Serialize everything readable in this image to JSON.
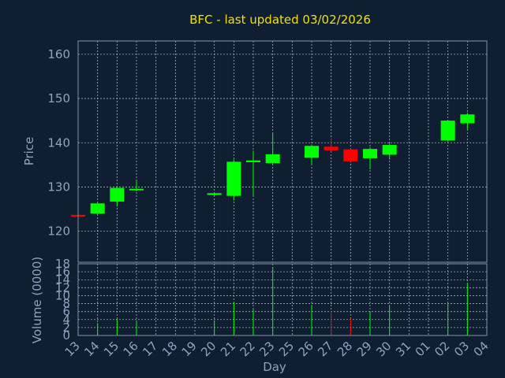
{
  "chart_data": {
    "type": "candlestick",
    "title": "BFC - last updated 03/02/2026",
    "xlabel": "Day",
    "ylabel": "Price",
    "volume_label": "Volume (0000)",
    "ylim": [
      113,
      163
    ],
    "yticks": [
      120,
      130,
      140,
      150,
      160
    ],
    "volume_ylim": [
      0,
      18
    ],
    "volume_yticks": [
      0,
      2,
      4,
      6,
      8,
      10,
      12,
      14,
      16,
      18
    ],
    "grid": true,
    "colors": {
      "up": "#00ff00",
      "down": "#ff0000",
      "title": "#f0e000",
      "text": "#8fa3bf",
      "background": "#0f1f31"
    },
    "x_labels": [
      "13",
      "14",
      "15",
      "16",
      "17",
      "18",
      "19",
      "20",
      "21",
      "22",
      "23",
      "25",
      "26",
      "27",
      "28",
      "29",
      "30",
      "31",
      "01",
      "02",
      "03",
      "04"
    ],
    "candles": [
      {
        "day": "13",
        "open": 123.7,
        "high": 123.7,
        "low": 123.4,
        "close": 123.5,
        "volume": 0.3
      },
      {
        "day": "14",
        "open": 124.0,
        "high": 126.3,
        "low": 123.8,
        "close": 126.3,
        "volume": 3.1
      },
      {
        "day": "15",
        "open": 126.7,
        "high": 130.0,
        "low": 125.6,
        "close": 129.8,
        "volume": 4.2
      },
      {
        "day": "16",
        "open": 129.3,
        "high": 131.4,
        "low": 129.0,
        "close": 129.6,
        "volume": 3.6
      },
      {
        "day": "20",
        "open": 128.2,
        "high": 128.8,
        "low": 127.9,
        "close": 128.6,
        "volume": 3.8
      },
      {
        "day": "21",
        "open": 128.0,
        "high": 136.2,
        "low": 127.0,
        "close": 135.7,
        "volume": 8.4
      },
      {
        "day": "22",
        "open": 135.6,
        "high": 138.2,
        "low": 128.0,
        "close": 136.0,
        "volume": 6.5
      },
      {
        "day": "23",
        "open": 135.4,
        "high": 142.2,
        "low": 135.1,
        "close": 137.4,
        "volume": 17.2
      },
      {
        "day": "26",
        "open": 136.6,
        "high": 139.6,
        "low": 135.0,
        "close": 139.3,
        "volume": 7.6
      },
      {
        "day": "27",
        "open": 139.1,
        "high": 141.0,
        "low": 138.0,
        "close": 138.3,
        "volume": 6.2
      },
      {
        "day": "28",
        "open": 138.5,
        "high": 138.6,
        "low": 135.8,
        "close": 135.8,
        "volume": 4.3
      },
      {
        "day": "29",
        "open": 136.5,
        "high": 139.0,
        "low": 134.0,
        "close": 138.6,
        "volume": 6.1
      },
      {
        "day": "30",
        "open": 137.3,
        "high": 139.8,
        "low": 136.2,
        "close": 139.5,
        "volume": 7.5
      },
      {
        "day": "02",
        "open": 140.5,
        "high": 145.2,
        "low": 140.3,
        "close": 145.0,
        "volume": 8.0
      },
      {
        "day": "03",
        "open": 144.4,
        "high": 146.8,
        "low": 143.0,
        "close": 146.4,
        "volume": 13.2
      }
    ]
  }
}
